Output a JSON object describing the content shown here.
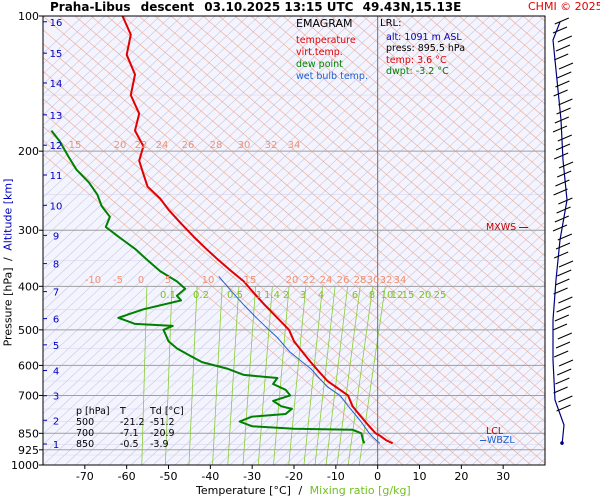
{
  "header": {
    "station": "Praha-Libus",
    "mode": "descent",
    "datetime": "03.10.2025 13:15 UTC",
    "coords": "49.43N,15.13E",
    "copyright": "CHMI © 2025"
  },
  "legend": {
    "title": "EMAGRAM",
    "items": [
      {
        "label": "temperature",
        "color": "#e00000"
      },
      {
        "label": "virt.temp.",
        "color": "#e00000"
      },
      {
        "label": "dew point",
        "color": "#009000"
      },
      {
        "label": "wet bulb temp.",
        "color": "#2060d0"
      }
    ]
  },
  "lrl": {
    "title": "LRL:",
    "alt": "alt: 1091 m ASL",
    "press": "press: 895.5 hPa",
    "temp": "temp: 3.6 °C",
    "dwpt": "dwpt: -3.2 °C"
  },
  "levels_table": {
    "headers": [
      "p [hPa]",
      "T",
      "Td [°C]"
    ],
    "rows": [
      [
        "500",
        "-21.2",
        "-51.2"
      ],
      [
        "700",
        "-7.1",
        "-20.9"
      ],
      [
        "850",
        "-0.5",
        "-3.9"
      ]
    ]
  },
  "markers": {
    "mxws": "MXWS",
    "lcl": "LCL",
    "wbzl": "WBZL"
  },
  "axes": {
    "xlabel": "Temperature [°C]",
    "xlabel_sep": "/",
    "xlabel2": "Mixing ratio [g/kg]",
    "ylabel": "Pressure [hPa]",
    "ylabel_sep": "/",
    "ylabel2": "Altitude [km]"
  },
  "colors": {
    "temperature": "#e00000",
    "dewpoint": "#008000",
    "wetbulb": "#2060d0",
    "mixing": "#88cc33",
    "dry_adiabat": "#f0a080",
    "isotherm": "#f0b090",
    "plot_bg": "#f4f4ff",
    "grid_gray": "#a0a0a0",
    "wind": "#000080"
  },
  "chart_data": {
    "type": "line",
    "title": "",
    "x_axis": {
      "ticks": [
        -70,
        -60,
        -50,
        -40,
        -30,
        -20,
        -10,
        0,
        10,
        20,
        30
      ],
      "range": [
        -80,
        40
      ]
    },
    "y_axis": {
      "scale": "log",
      "ticks": [
        100,
        200,
        300,
        400,
        500,
        600,
        700,
        850,
        925,
        1000
      ],
      "range": [
        100,
        1000
      ]
    },
    "altitude_km_ticks": [
      1,
      2,
      3,
      4,
      5,
      6,
      7,
      8,
      9,
      10,
      11,
      12,
      13,
      14,
      15,
      16
    ],
    "adiabat_labels_upper": [
      "15",
      "20",
      "22",
      "24",
      "26",
      "28",
      "30",
      "32",
      "34"
    ],
    "adiabat_labels_lower": [
      "-10",
      "-5",
      "0",
      "5",
      "10",
      "15",
      "20",
      "22",
      "24",
      "26",
      "28",
      "30",
      "32",
      "34"
    ],
    "mixing_labels": [
      "0.1",
      "0.2",
      "0.5",
      "1",
      "1.4",
      "2",
      "3",
      "4",
      "6",
      "8",
      "10",
      "12",
      "15",
      "20",
      "25"
    ],
    "series": [
      {
        "name": "temperature",
        "points": [
          [
            3.6,
            895
          ],
          [
            2,
            880
          ],
          [
            0.5,
            860
          ],
          [
            -0.5,
            850
          ],
          [
            -2,
            820
          ],
          [
            -3.5,
            790
          ],
          [
            -5,
            760
          ],
          [
            -6,
            740
          ],
          [
            -7.1,
            700
          ],
          [
            -9,
            680
          ],
          [
            -12,
            650
          ],
          [
            -14,
            620
          ],
          [
            -16,
            590
          ],
          [
            -18,
            560
          ],
          [
            -20,
            530
          ],
          [
            -21.2,
            500
          ],
          [
            -24,
            470
          ],
          [
            -27,
            440
          ],
          [
            -30,
            410
          ],
          [
            -32,
            390
          ],
          [
            -35,
            370
          ],
          [
            -38,
            350
          ],
          [
            -41,
            330
          ],
          [
            -44,
            310
          ],
          [
            -47,
            290
          ],
          [
            -50,
            270
          ],
          [
            -52,
            255
          ],
          [
            -55,
            240
          ],
          [
            -56,
            225
          ],
          [
            -57,
            210
          ],
          [
            -56,
            195
          ],
          [
            -58,
            180
          ],
          [
            -57,
            165
          ],
          [
            -59,
            150
          ],
          [
            -58,
            135
          ],
          [
            -60,
            122
          ],
          [
            -59,
            110
          ],
          [
            -61,
            100
          ]
        ]
      },
      {
        "name": "dew point",
        "points": [
          [
            -3.2,
            895
          ],
          [
            -3.5,
            880
          ],
          [
            -3.9,
            850
          ],
          [
            -6,
            835
          ],
          [
            -20,
            830
          ],
          [
            -30,
            820
          ],
          [
            -33,
            800
          ],
          [
            -30,
            780
          ],
          [
            -22,
            770
          ],
          [
            -20.5,
            750
          ],
          [
            -23,
            740
          ],
          [
            -25,
            720
          ],
          [
            -20.9,
            700
          ],
          [
            -22,
            680
          ],
          [
            -25,
            660
          ],
          [
            -24,
            640
          ],
          [
            -32,
            630
          ],
          [
            -36,
            610
          ],
          [
            -42,
            590
          ],
          [
            -45,
            570
          ],
          [
            -48,
            550
          ],
          [
            -50,
            530
          ],
          [
            -51.2,
            500
          ],
          [
            -49,
            490
          ],
          [
            -58,
            485
          ],
          [
            -62,
            470
          ],
          [
            -56,
            450
          ],
          [
            -47,
            430
          ],
          [
            -48,
            420
          ],
          [
            -46,
            405
          ],
          [
            -48,
            390
          ],
          [
            -52,
            370
          ],
          [
            -55,
            350
          ],
          [
            -58,
            330
          ],
          [
            -62,
            310
          ],
          [
            -65,
            295
          ],
          [
            -64,
            280
          ],
          [
            -66,
            265
          ],
          [
            -67,
            250
          ],
          [
            -69,
            235
          ],
          [
            -72,
            220
          ],
          [
            -74,
            205
          ],
          [
            -76,
            190
          ],
          [
            -78,
            180
          ]
        ]
      },
      {
        "name": "wet bulb temp.",
        "points": [
          [
            0.5,
            895
          ],
          [
            -1,
            870
          ],
          [
            -2,
            850
          ],
          [
            -4,
            800
          ],
          [
            -7,
            740
          ],
          [
            -9,
            700
          ],
          [
            -12,
            670
          ],
          [
            -14,
            640
          ],
          [
            -16,
            610
          ],
          [
            -18,
            590
          ],
          [
            -21,
            560
          ],
          [
            -24,
            520
          ],
          [
            -26,
            500
          ],
          [
            -29,
            470
          ],
          [
            -32,
            440
          ],
          [
            -35,
            410
          ],
          [
            -38,
            380
          ]
        ]
      }
    ]
  }
}
